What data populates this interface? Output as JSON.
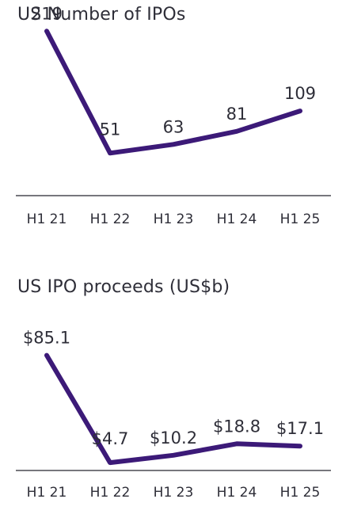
{
  "colors": {
    "line": "#3c1a78",
    "axis": "#4a4a52",
    "text": "#2e2e38"
  },
  "chart_data": [
    {
      "type": "line",
      "title": "US Number of IPOs",
      "categories": [
        "H1 21",
        "H1 22",
        "H1 23",
        "H1 24",
        "H1 25"
      ],
      "values": [
        219,
        51,
        63,
        81,
        109
      ],
      "value_labels": [
        "219",
        "51",
        "63",
        "81",
        "109"
      ],
      "xlabel": "",
      "ylabel": "",
      "ylim": [
        0,
        240
      ],
      "grid": false,
      "legend": "none"
    },
    {
      "type": "line",
      "title": "US IPO proceeds (US$b)",
      "categories": [
        "H1 21",
        "H1 22",
        "H1 23",
        "H1 24",
        "H1 25"
      ],
      "values": [
        85.1,
        4.7,
        10.2,
        18.8,
        17.1
      ],
      "value_labels": [
        "$85.1",
        "$4.7",
        "$10.2",
        "$18.8",
        "$17.1"
      ],
      "xlabel": "",
      "ylabel": "",
      "ylim": [
        0,
        92
      ],
      "grid": false,
      "legend": "none"
    }
  ]
}
